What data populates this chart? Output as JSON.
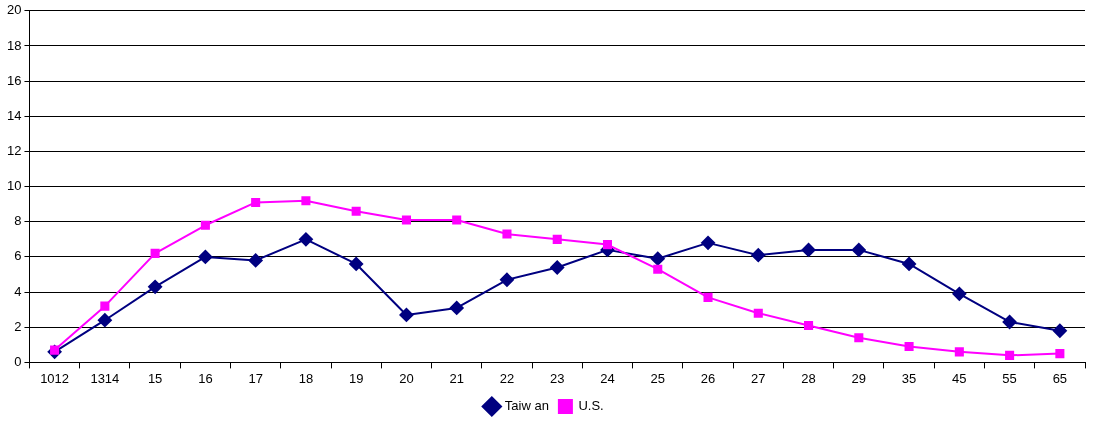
{
  "chart_data": {
    "type": "line",
    "categories": [
      "1012",
      "1314",
      "15",
      "16",
      "17",
      "18",
      "19",
      "20",
      "21",
      "22",
      "23",
      "24",
      "25",
      "26",
      "27",
      "28",
      "29",
      "35",
      "45",
      "55",
      "65"
    ],
    "series": [
      {
        "name": "Taiw an",
        "color": "#000080",
        "marker": "diamond",
        "values": [
          0.6,
          2.4,
          4.3,
          6.0,
          5.8,
          7.0,
          5.6,
          2.7,
          3.1,
          4.7,
          5.4,
          6.4,
          5.9,
          6.8,
          6.1,
          6.4,
          6.4,
          5.6,
          3.9,
          2.3,
          1.8
        ]
      },
      {
        "name": "U.S.",
        "color": "#ff00ff",
        "marker": "square",
        "values": [
          0.7,
          3.2,
          6.2,
          7.8,
          9.1,
          9.2,
          8.6,
          8.1,
          8.1,
          7.3,
          7.0,
          6.7,
          5.3,
          3.7,
          2.8,
          2.1,
          1.4,
          0.9,
          0.6,
          0.4,
          0.5
        ]
      }
    ],
    "ylim": [
      0,
      20
    ],
    "yticks": [
      0,
      2,
      4,
      6,
      8,
      10,
      12,
      14,
      16,
      18,
      20
    ],
    "grid": "y",
    "legend": "bottom"
  }
}
